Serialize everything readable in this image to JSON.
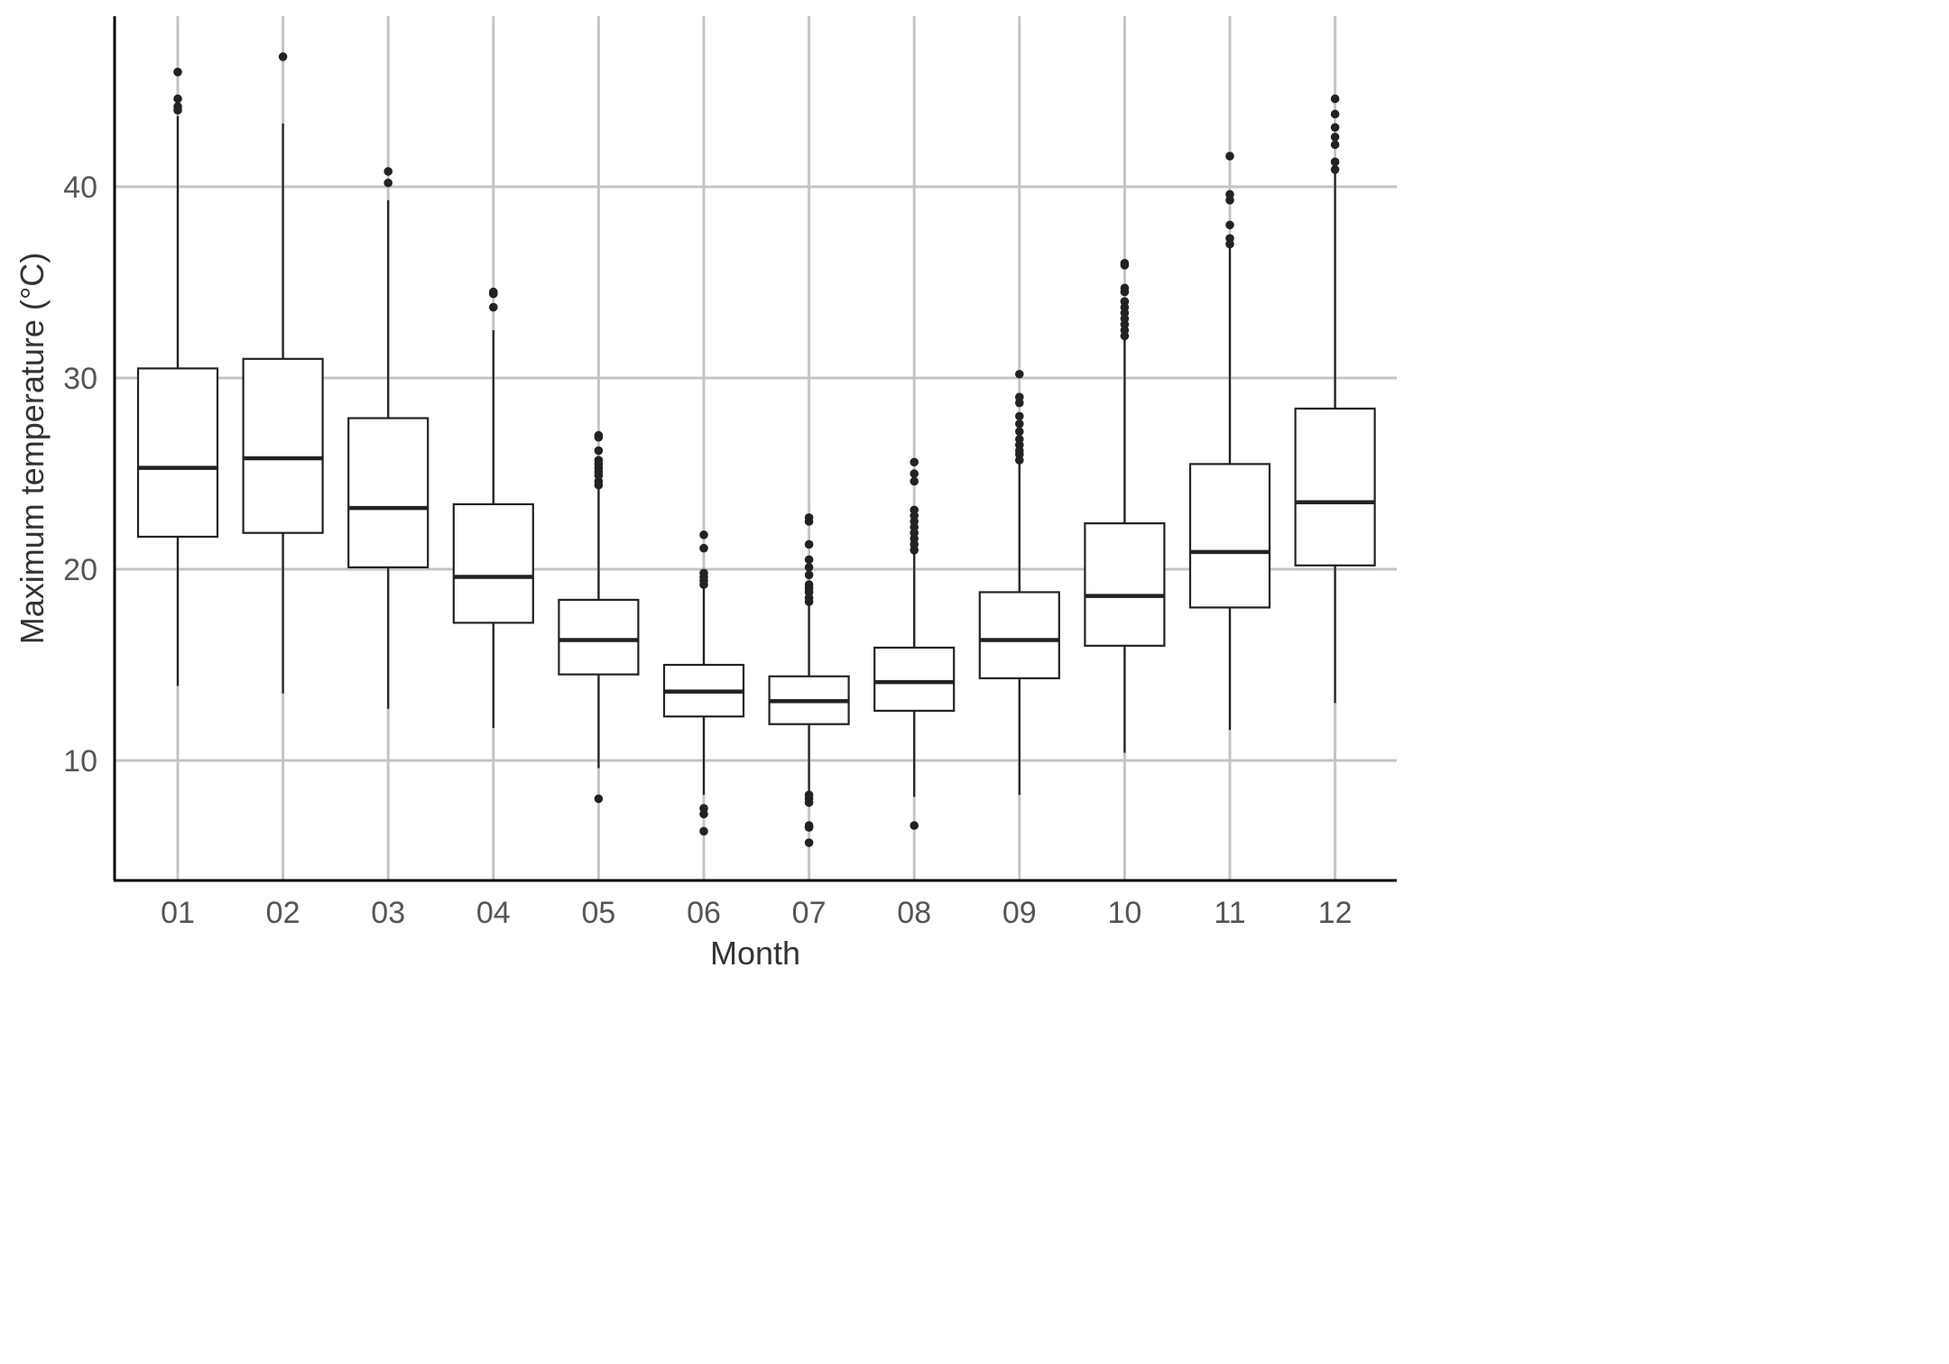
{
  "chart_data": {
    "type": "boxplot",
    "xlabel": "Month",
    "ylabel": "Maximum temperature (°C)",
    "ylim": [
      3.8,
      48.8
    ],
    "yticks": [
      10,
      20,
      30,
      40
    ],
    "grid": true,
    "categories": [
      "01",
      "02",
      "03",
      "04",
      "05",
      "06",
      "07",
      "08",
      "09",
      "10",
      "11",
      "12"
    ],
    "boxes": [
      {
        "month": "01",
        "whisker_low": 13.9,
        "q1": 21.7,
        "median": 25.3,
        "q3": 30.5,
        "whisker_high": 43.7,
        "outliers": [
          44.0,
          44.2,
          44.6,
          46.0
        ]
      },
      {
        "month": "02",
        "whisker_low": 13.5,
        "q1": 21.9,
        "median": 25.8,
        "q3": 31.0,
        "whisker_high": 43.3,
        "outliers": [
          46.8
        ]
      },
      {
        "month": "03",
        "whisker_low": 12.7,
        "q1": 20.1,
        "median": 23.2,
        "q3": 27.9,
        "whisker_high": 39.3,
        "outliers": [
          40.2,
          40.8
        ]
      },
      {
        "month": "04",
        "whisker_low": 11.7,
        "q1": 17.2,
        "median": 19.6,
        "q3": 23.4,
        "whisker_high": 32.5,
        "outliers": [
          33.7,
          34.4,
          34.5
        ]
      },
      {
        "month": "05",
        "whisker_low": 9.6,
        "q1": 14.5,
        "median": 16.3,
        "q3": 18.4,
        "whisker_high": 24.2,
        "outliers": [
          8.0,
          24.4,
          24.6,
          24.9,
          25.1,
          25.3,
          25.5,
          25.7,
          26.2,
          26.9,
          27.0
        ]
      },
      {
        "month": "06",
        "whisker_low": 8.2,
        "q1": 12.3,
        "median": 13.6,
        "q3": 15.0,
        "whisker_high": 19.0,
        "outliers": [
          6.3,
          7.2,
          7.5,
          19.2,
          19.4,
          19.6,
          19.8,
          21.1,
          21.8
        ]
      },
      {
        "month": "07",
        "whisker_low": 8.3,
        "q1": 11.9,
        "median": 13.1,
        "q3": 14.4,
        "whisker_high": 18.1,
        "outliers": [
          5.7,
          6.5,
          6.6,
          7.8,
          8.0,
          8.2,
          18.3,
          18.5,
          18.8,
          19.0,
          19.2,
          19.7,
          20.1,
          20.5,
          21.3,
          22.5,
          22.7
        ]
      },
      {
        "month": "08",
        "whisker_low": 8.1,
        "q1": 12.6,
        "median": 14.1,
        "q3": 15.9,
        "whisker_high": 20.8,
        "outliers": [
          6.6,
          21.0,
          21.3,
          21.6,
          21.9,
          22.2,
          22.5,
          22.8,
          23.1,
          24.6,
          25.0,
          25.6
        ]
      },
      {
        "month": "09",
        "whisker_low": 8.2,
        "q1": 14.3,
        "median": 16.3,
        "q3": 18.8,
        "whisker_high": 25.5,
        "outliers": [
          25.7,
          26.0,
          26.2,
          26.5,
          26.8,
          27.2,
          27.6,
          28.0,
          28.7,
          29.0,
          30.2
        ]
      },
      {
        "month": "10",
        "whisker_low": 10.4,
        "q1": 16.0,
        "median": 18.6,
        "q3": 22.4,
        "whisker_high": 32.0,
        "outliers": [
          32.2,
          32.5,
          32.8,
          33.1,
          33.4,
          33.7,
          34.0,
          34.5,
          34.7,
          35.9,
          36.0
        ]
      },
      {
        "month": "11",
        "whisker_low": 11.6,
        "q1": 18.0,
        "median": 20.9,
        "q3": 25.5,
        "whisker_high": 36.8,
        "outliers": [
          37.0,
          37.3,
          38.0,
          39.3,
          39.6,
          41.6
        ]
      },
      {
        "month": "12",
        "whisker_low": 13.0,
        "q1": 20.2,
        "median": 23.5,
        "q3": 28.4,
        "whisker_high": 40.7,
        "outliers": [
          40.9,
          41.3,
          42.2,
          42.6,
          43.1,
          43.8,
          44.6
        ]
      }
    ]
  }
}
